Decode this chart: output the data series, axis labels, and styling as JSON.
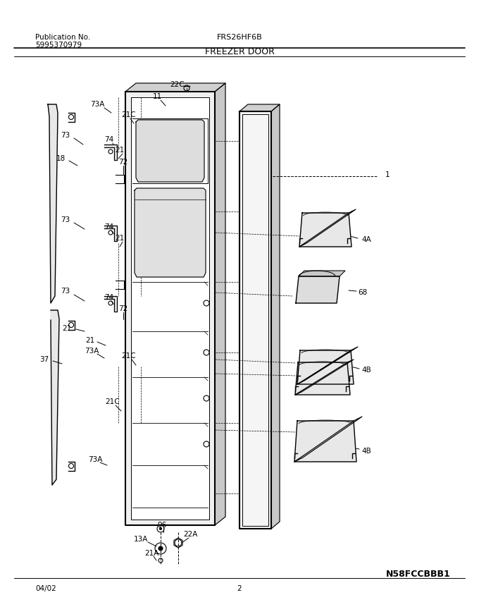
{
  "title": "FREEZER DOOR",
  "pub_label": "Publication No.",
  "pub_num": "5995370979",
  "model": "FRS26HF6B",
  "doc_id": "N58FCCBBB1",
  "date": "04/02",
  "page": "2",
  "bg_color": "#ffffff"
}
